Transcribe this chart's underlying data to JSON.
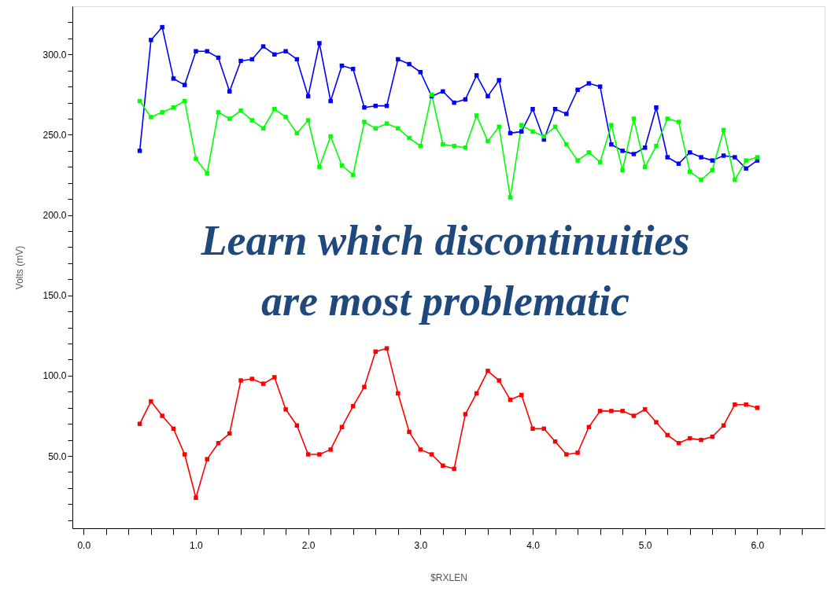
{
  "chart_data": {
    "type": "line",
    "xlabel": "$RXLEN",
    "ylabel": "Volts (mV)",
    "x": [
      0.5,
      0.6,
      0.7,
      0.8,
      0.9,
      1.0,
      1.1,
      1.2,
      1.3,
      1.4,
      1.5,
      1.6,
      1.7,
      1.8,
      1.9,
      2.0,
      2.1,
      2.2,
      2.3,
      2.4,
      2.5,
      2.6,
      2.7,
      2.8,
      2.9,
      3.0,
      3.1,
      3.2,
      3.3,
      3.4,
      3.5,
      3.6,
      3.7,
      3.8,
      3.9,
      4.0,
      4.1,
      4.2,
      4.3,
      4.4,
      4.5,
      4.6,
      4.7,
      4.8,
      4.9,
      5.0,
      5.1,
      5.2,
      5.3,
      5.4,
      5.5,
      5.6,
      5.7,
      5.8,
      5.9,
      6.0
    ],
    "series": [
      {
        "color": "#0000ff",
        "values": [
          240,
          309,
          317,
          285,
          281,
          302,
          302,
          298,
          277,
          296,
          297,
          305,
          300,
          302,
          297,
          274,
          307,
          271,
          293,
          291,
          267,
          268,
          268,
          297,
          294,
          289,
          274,
          277,
          270,
          272,
          287,
          274,
          284,
          251,
          252,
          266,
          247,
          266,
          263,
          278,
          282,
          280,
          244,
          240,
          238,
          242,
          267,
          236,
          232,
          239,
          236,
          234,
          237,
          236,
          229,
          234
        ]
      },
      {
        "color": "#00ff00",
        "values": [
          271,
          261,
          264,
          267,
          271,
          235,
          226,
          264,
          260,
          265,
          259,
          254,
          266,
          261,
          251,
          259,
          230,
          249,
          231,
          225,
          258,
          254,
          257,
          254,
          248,
          243,
          275,
          244,
          243,
          242,
          262,
          246,
          255,
          211,
          256,
          252,
          249,
          255,
          244,
          234,
          239,
          233,
          256,
          228,
          260,
          230,
          243,
          260,
          258,
          227,
          222,
          228,
          253,
          222,
          234,
          236
        ]
      },
      {
        "color": "#ff0000",
        "values": [
          70,
          84,
          75,
          67,
          51,
          24,
          48,
          58,
          64,
          97,
          98,
          95,
          99,
          79,
          69,
          51,
          51,
          54,
          68,
          81,
          93,
          115,
          117,
          89,
          65,
          54,
          51,
          44,
          42,
          76,
          89,
          103,
          97,
          85,
          88,
          67,
          67,
          59,
          51,
          52,
          68,
          78,
          78,
          78,
          75,
          79,
          71,
          63,
          58,
          61,
          60,
          62,
          69,
          82,
          82,
          80
        ]
      }
    ],
    "xlim": [
      -0.1,
      6.6
    ],
    "ylim": [
      5,
      330
    ],
    "xticks": [
      {
        "value": 0,
        "label": "0.0"
      },
      {
        "value": 0.2,
        "label": null
      },
      {
        "value": 0.4,
        "label": null
      },
      {
        "value": 0.6,
        "label": null
      },
      {
        "value": 0.8,
        "label": null
      },
      {
        "value": 1,
        "label": "1.0"
      },
      {
        "value": 1.2,
        "label": null
      },
      {
        "value": 1.4,
        "label": null
      },
      {
        "value": 1.6,
        "label": null
      },
      {
        "value": 1.8,
        "label": null
      },
      {
        "value": 2,
        "label": "2.0"
      },
      {
        "value": 2.2,
        "label": null
      },
      {
        "value": 2.4,
        "label": null
      },
      {
        "value": 2.6,
        "label": null
      },
      {
        "value": 2.8,
        "label": null
      },
      {
        "value": 3,
        "label": "3.0"
      },
      {
        "value": 3.2,
        "label": null
      },
      {
        "value": 3.4,
        "label": null
      },
      {
        "value": 3.6,
        "label": null
      },
      {
        "value": 3.8,
        "label": null
      },
      {
        "value": 4,
        "label": "4.0"
      },
      {
        "value": 4.2,
        "label": null
      },
      {
        "value": 4.4,
        "label": null
      },
      {
        "value": 4.6,
        "label": null
      },
      {
        "value": 4.8,
        "label": null
      },
      {
        "value": 5,
        "label": "5.0"
      },
      {
        "value": 5.2,
        "label": null
      },
      {
        "value": 5.4,
        "label": null
      },
      {
        "value": 5.6,
        "label": null
      },
      {
        "value": 5.8,
        "label": null
      },
      {
        "value": 6,
        "label": "6.0"
      },
      {
        "value": 6.2,
        "label": null
      },
      {
        "value": 6.4,
        "label": null
      }
    ],
    "yticks": [
      {
        "value": 10,
        "label": null
      },
      {
        "value": 20,
        "label": null
      },
      {
        "value": 30,
        "label": null
      },
      {
        "value": 40,
        "label": null
      },
      {
        "value": 50,
        "label": "50.0"
      },
      {
        "value": 60,
        "label": null
      },
      {
        "value": 70,
        "label": null
      },
      {
        "value": 80,
        "label": null
      },
      {
        "value": 90,
        "label": null
      },
      {
        "value": 100,
        "label": "100.0"
      },
      {
        "value": 110,
        "label": null
      },
      {
        "value": 120,
        "label": null
      },
      {
        "value": 130,
        "label": null
      },
      {
        "value": 140,
        "label": null
      },
      {
        "value": 150,
        "label": "150.0"
      },
      {
        "value": 160,
        "label": null
      },
      {
        "value": 170,
        "label": null
      },
      {
        "value": 180,
        "label": null
      },
      {
        "value": 190,
        "label": null
      },
      {
        "value": 200,
        "label": "200.0"
      },
      {
        "value": 210,
        "label": null
      },
      {
        "value": 220,
        "label": null
      },
      {
        "value": 230,
        "label": null
      },
      {
        "value": 240,
        "label": null
      },
      {
        "value": 250,
        "label": "250.0"
      },
      {
        "value": 260,
        "label": null
      },
      {
        "value": 270,
        "label": null
      },
      {
        "value": 280,
        "label": null
      },
      {
        "value": 290,
        "label": null
      },
      {
        "value": 300,
        "label": "300.0"
      },
      {
        "value": 310,
        "label": null
      },
      {
        "value": 320,
        "label": null
      }
    ],
    "marker": "square",
    "line_style": "solid",
    "grid": false,
    "annotations": [
      "Learn which discontinuities",
      "are most problematic"
    ]
  }
}
